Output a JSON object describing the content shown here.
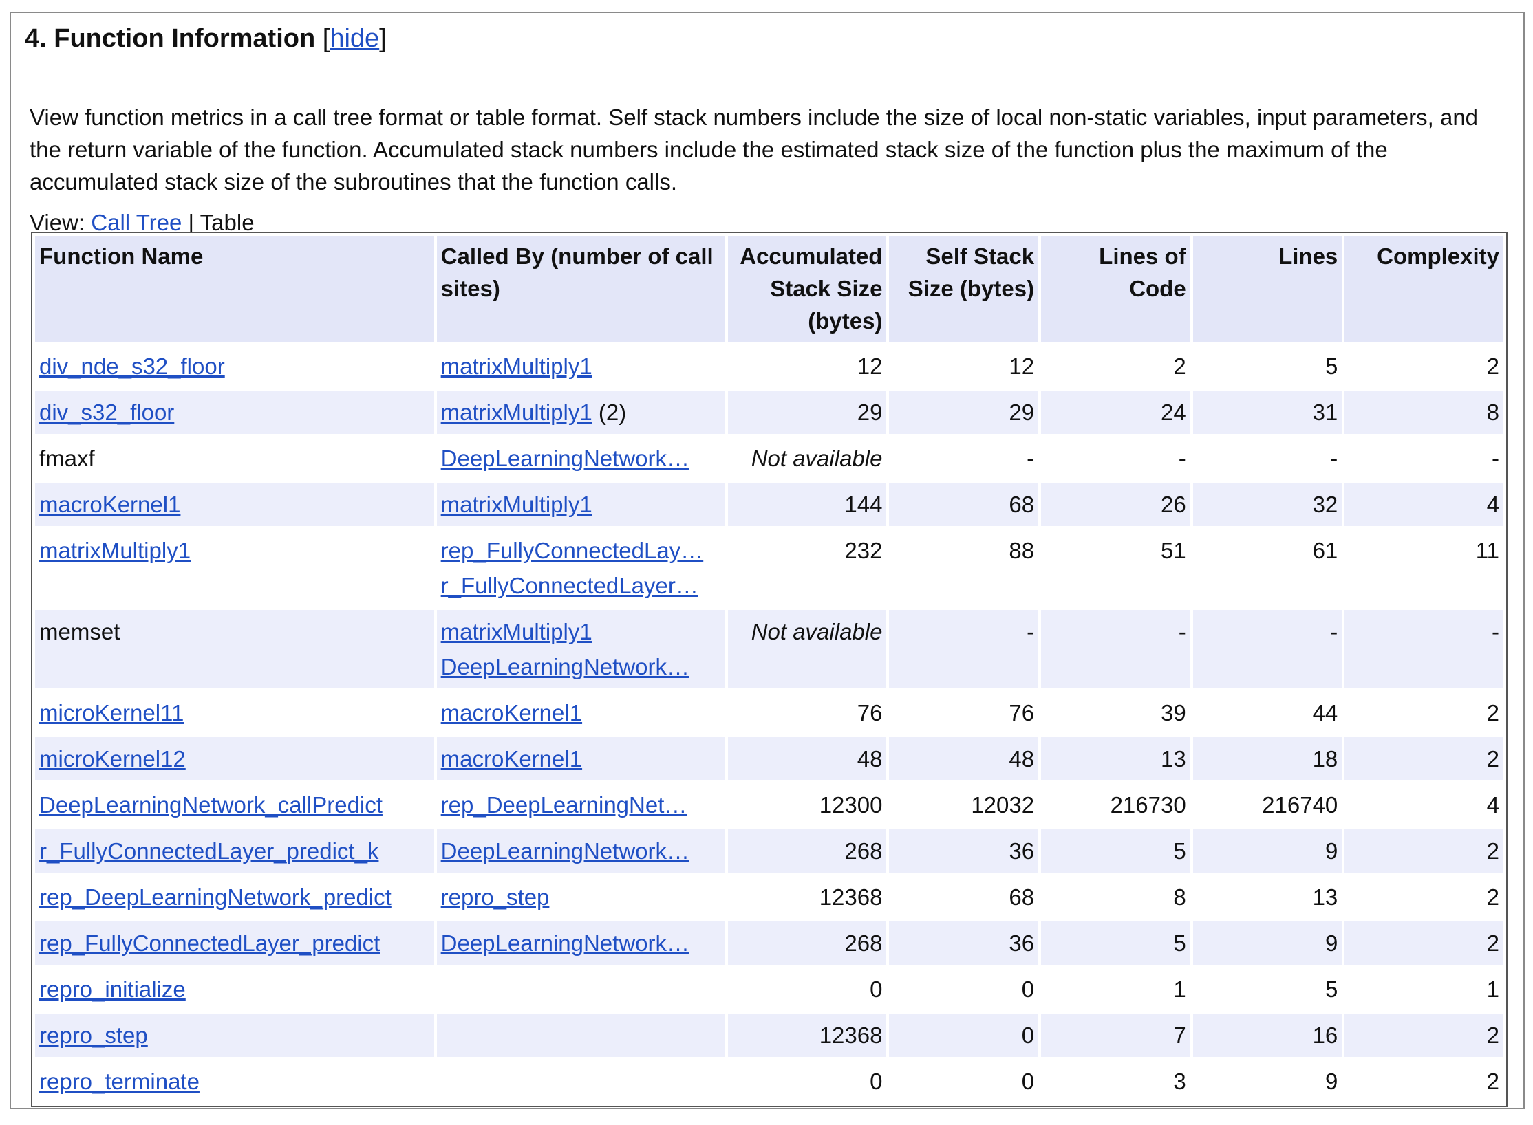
{
  "header": {
    "title": "4. Function Information",
    "hide": {
      "open": "[",
      "link": "hide",
      "close": "]"
    }
  },
  "description": "View function metrics in a call tree format or table format. Self stack numbers include the size of local non-static variables, input parameters, and the return variable of the function. Accumulated stack numbers include the estimated stack size of the function plus the maximum of the accumulated stack size of the subroutines that the function calls.",
  "view": {
    "label": "View:",
    "call_tree": "Call Tree",
    "separator": "|",
    "table": "Table"
  },
  "table": {
    "columns": [
      "Function Name",
      "Called By (number of call sites)",
      "Accumulated Stack Size (bytes)",
      "Self Stack Size (bytes)",
      "Lines of Code",
      "Lines",
      "Complexity"
    ],
    "rows": [
      {
        "name": "div_nde_s32_floor",
        "name_is_link": true,
        "called_by": [
          {
            "name": "matrixMultiply1"
          }
        ],
        "metrics": [
          12,
          12,
          2,
          5,
          2
        ]
      },
      {
        "name": "div_s32_floor",
        "name_is_link": true,
        "called_by": [
          {
            "name": "matrixMultiply1",
            "suffix": "(2)"
          }
        ],
        "metrics": [
          29,
          29,
          24,
          31,
          8
        ]
      },
      {
        "name": "fmaxf",
        "name_is_link": false,
        "called_by": [
          {
            "name": "DeepLearningNetwork…"
          }
        ],
        "metrics": [
          "Not available",
          "-",
          "-",
          "-",
          "-"
        ]
      },
      {
        "name": "macroKernel1",
        "name_is_link": true,
        "called_by": [
          {
            "name": "matrixMultiply1"
          }
        ],
        "metrics": [
          144,
          68,
          26,
          32,
          4
        ]
      },
      {
        "name": "matrixMultiply1",
        "name_is_link": true,
        "called_by": [
          {
            "name": "rep_FullyConnectedLay…"
          },
          {
            "name": "r_FullyConnectedLayer…"
          }
        ],
        "metrics": [
          232,
          88,
          51,
          61,
          11
        ]
      },
      {
        "name": "memset",
        "name_is_link": false,
        "called_by": [
          {
            "name": "matrixMultiply1"
          },
          {
            "name": "DeepLearningNetwork…"
          }
        ],
        "metrics": [
          "Not available",
          "-",
          "-",
          "-",
          "-"
        ]
      },
      {
        "name": "microKernel11",
        "name_is_link": true,
        "called_by": [
          {
            "name": "macroKernel1"
          }
        ],
        "metrics": [
          76,
          76,
          39,
          44,
          2
        ]
      },
      {
        "name": "microKernel12",
        "name_is_link": true,
        "called_by": [
          {
            "name": "macroKernel1"
          }
        ],
        "metrics": [
          48,
          48,
          13,
          18,
          2
        ]
      },
      {
        "name": "DeepLearningNetwork_callPredict",
        "name_is_link": true,
        "called_by": [
          {
            "name": "rep_DeepLearningNet…"
          }
        ],
        "metrics": [
          12300,
          12032,
          216730,
          216740,
          4
        ]
      },
      {
        "name": "r_FullyConnectedLayer_predict_k",
        "name_is_link": true,
        "called_by": [
          {
            "name": "DeepLearningNetwork…"
          }
        ],
        "metrics": [
          268,
          36,
          5,
          9,
          2
        ]
      },
      {
        "name": "rep_DeepLearningNetwork_predict",
        "name_is_link": true,
        "called_by": [
          {
            "name": "repro_step"
          }
        ],
        "metrics": [
          12368,
          68,
          8,
          13,
          2
        ]
      },
      {
        "name": "rep_FullyConnectedLayer_predict",
        "name_is_link": true,
        "called_by": [
          {
            "name": "DeepLearningNetwork…"
          }
        ],
        "metrics": [
          268,
          36,
          5,
          9,
          2
        ]
      },
      {
        "name": "repro_initialize",
        "name_is_link": true,
        "called_by": [],
        "metrics": [
          0,
          0,
          1,
          5,
          1
        ]
      },
      {
        "name": "repro_step",
        "name_is_link": true,
        "called_by": [],
        "metrics": [
          12368,
          0,
          7,
          16,
          2
        ]
      },
      {
        "name": "repro_terminate",
        "name_is_link": true,
        "called_by": [],
        "metrics": [
          0,
          0,
          3,
          9,
          2
        ]
      }
    ]
  }
}
